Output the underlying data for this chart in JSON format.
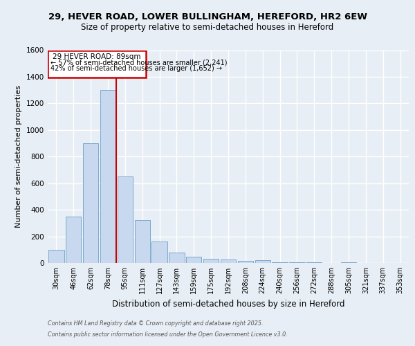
{
  "title_line1": "29, HEVER ROAD, LOWER BULLINGHAM, HEREFORD, HR2 6EW",
  "title_line2": "Size of property relative to semi-detached houses in Hereford",
  "xlabel": "Distribution of semi-detached houses by size in Hereford",
  "ylabel": "Number of semi-detached properties",
  "categories": [
    "30sqm",
    "46sqm",
    "62sqm",
    "78sqm",
    "95sqm",
    "111sqm",
    "127sqm",
    "143sqm",
    "159sqm",
    "175sqm",
    "192sqm",
    "208sqm",
    "224sqm",
    "240sqm",
    "256sqm",
    "272sqm",
    "288sqm",
    "305sqm",
    "321sqm",
    "337sqm",
    "353sqm"
  ],
  "values": [
    100,
    350,
    900,
    1300,
    650,
    325,
    160,
    80,
    45,
    30,
    25,
    15,
    20,
    5,
    5,
    5,
    2,
    5,
    2,
    2,
    2
  ],
  "bar_color": "#c8d8ee",
  "bar_edge_color": "#7aaacc",
  "red_line_label": "29 HEVER ROAD: 89sqm",
  "annotation_smaller": "← 57% of semi-detached houses are smaller (2,241)",
  "annotation_larger": "42% of semi-detached houses are larger (1,652) →",
  "ylim": [
    0,
    1600
  ],
  "yticks": [
    0,
    200,
    400,
    600,
    800,
    1000,
    1200,
    1400,
    1600
  ],
  "footer_line1": "Contains HM Land Registry data © Crown copyright and database right 2025.",
  "footer_line2": "Contains public sector information licensed under the Open Government Licence v3.0.",
  "box_color": "#cc0000",
  "background_color": "#e8eef5",
  "grid_color": "#ffffff"
}
